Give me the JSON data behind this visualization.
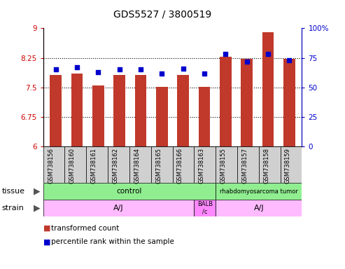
{
  "title": "GDS5527 / 3800519",
  "samples": [
    "GSM738156",
    "GSM738160",
    "GSM738161",
    "GSM738162",
    "GSM738164",
    "GSM738165",
    "GSM738166",
    "GSM738163",
    "GSM738155",
    "GSM738157",
    "GSM738158",
    "GSM738159"
  ],
  "bar_values": [
    7.82,
    7.85,
    7.55,
    7.82,
    7.82,
    7.52,
    7.82,
    7.51,
    8.28,
    8.22,
    8.9,
    8.23
  ],
  "percentile_values": [
    65,
    67,
    63,
    65,
    65,
    62,
    66,
    62,
    78,
    72,
    78,
    73
  ],
  "ylim_left": [
    6,
    9
  ],
  "ylim_right": [
    0,
    100
  ],
  "yticks_left": [
    6,
    6.75,
    7.5,
    8.25,
    9
  ],
  "yticks_right": [
    0,
    25,
    50,
    75,
    100
  ],
  "ytick_labels_right": [
    "0",
    "25",
    "50",
    "75",
    "100%"
  ],
  "bar_color": "#c0392b",
  "dot_color": "#0000cc",
  "tissue_color_control": "#90ee90",
  "tissue_color_tumor": "#90ee90",
  "strain_color_aj": "#ffbbff",
  "strain_color_balb": "#ff88ff",
  "label_bg_color": "#d0d0d0",
  "left_color": "#cc0000",
  "right_color": "#0000cc",
  "tissue_row": [
    {
      "label": "control",
      "start": 0,
      "end": 8
    },
    {
      "label": "rhabdomyosarcoma tumor",
      "start": 8,
      "end": 12
    }
  ],
  "strain_row": [
    {
      "label": "A/J",
      "start": 0,
      "end": 7
    },
    {
      "label": "BALB\n/c",
      "start": 7,
      "end": 8
    },
    {
      "label": "A/J",
      "start": 8,
      "end": 12
    }
  ],
  "legend": [
    {
      "color": "#c0392b",
      "label": "transformed count"
    },
    {
      "color": "#0000cc",
      "label": "percentile rank within the sample"
    }
  ]
}
